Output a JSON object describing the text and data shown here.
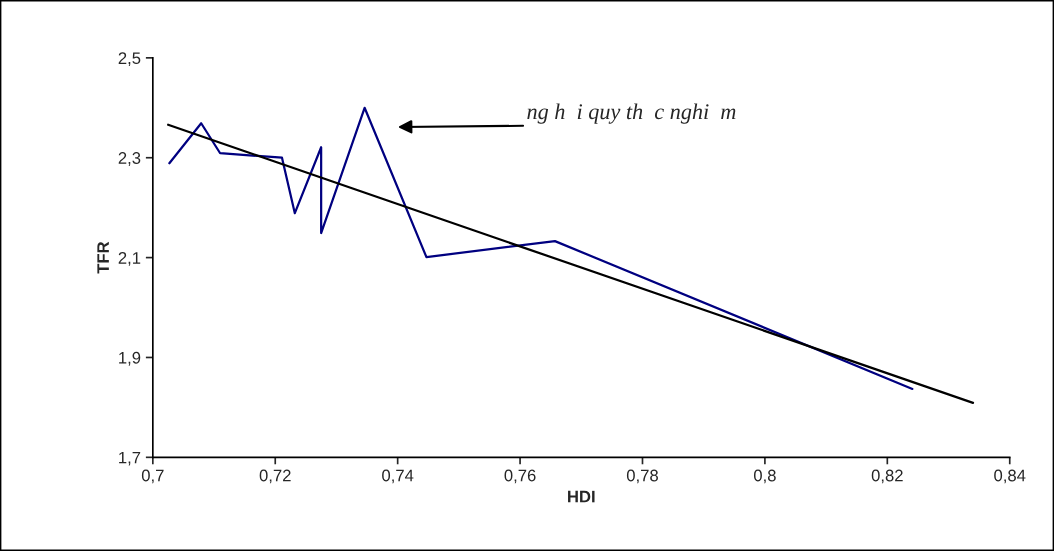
{
  "chart_data": {
    "type": "line",
    "xlabel": "HDI",
    "ylabel": "TFR",
    "xlim": [
      0.7,
      0.84
    ],
    "xticks": [
      {
        "value": 0.7,
        "label": "0,7"
      },
      {
        "value": 0.72,
        "label": "0,72"
      },
      {
        "value": 0.74,
        "label": "0,74"
      },
      {
        "value": 0.76,
        "label": "0,76"
      },
      {
        "value": 0.78,
        "label": "0,78"
      },
      {
        "value": 0.8,
        "label": "0,8"
      },
      {
        "value": 0.82,
        "label": "0,82"
      },
      {
        "value": 0.84,
        "label": "0,84"
      }
    ],
    "ylim": [
      1.7,
      2.5
    ],
    "yticks": [
      {
        "value": 1.7,
        "label": "1,7"
      },
      {
        "value": 1.9,
        "label": "1,9"
      },
      {
        "value": 2.1,
        "label": "2,1"
      },
      {
        "value": 2.3,
        "label": "2,3"
      },
      {
        "value": 2.5,
        "label": "2,5"
      }
    ],
    "grid": false,
    "legend": false,
    "marker": "none",
    "line_style": "solid",
    "series": [
      {
        "color": "#000080",
        "x": [
          0.7027,
          0.7079,
          0.711,
          0.7211,
          0.7232,
          0.7275,
          0.7275,
          0.7346,
          0.7447,
          0.7657,
          0.8241
        ],
        "values": [
          2.289,
          2.369,
          2.309,
          2.3,
          2.189,
          2.321,
          2.149,
          2.4,
          2.101,
          2.133,
          1.837
        ]
      },
      {
        "type": "line",
        "color": "#000000",
        "x": [
          0.7025,
          0.834
        ],
        "values": [
          2.366,
          1.809
        ]
      }
    ],
    "annotations": [
      "ng h  i quy th  c nghi  m"
    ]
  }
}
